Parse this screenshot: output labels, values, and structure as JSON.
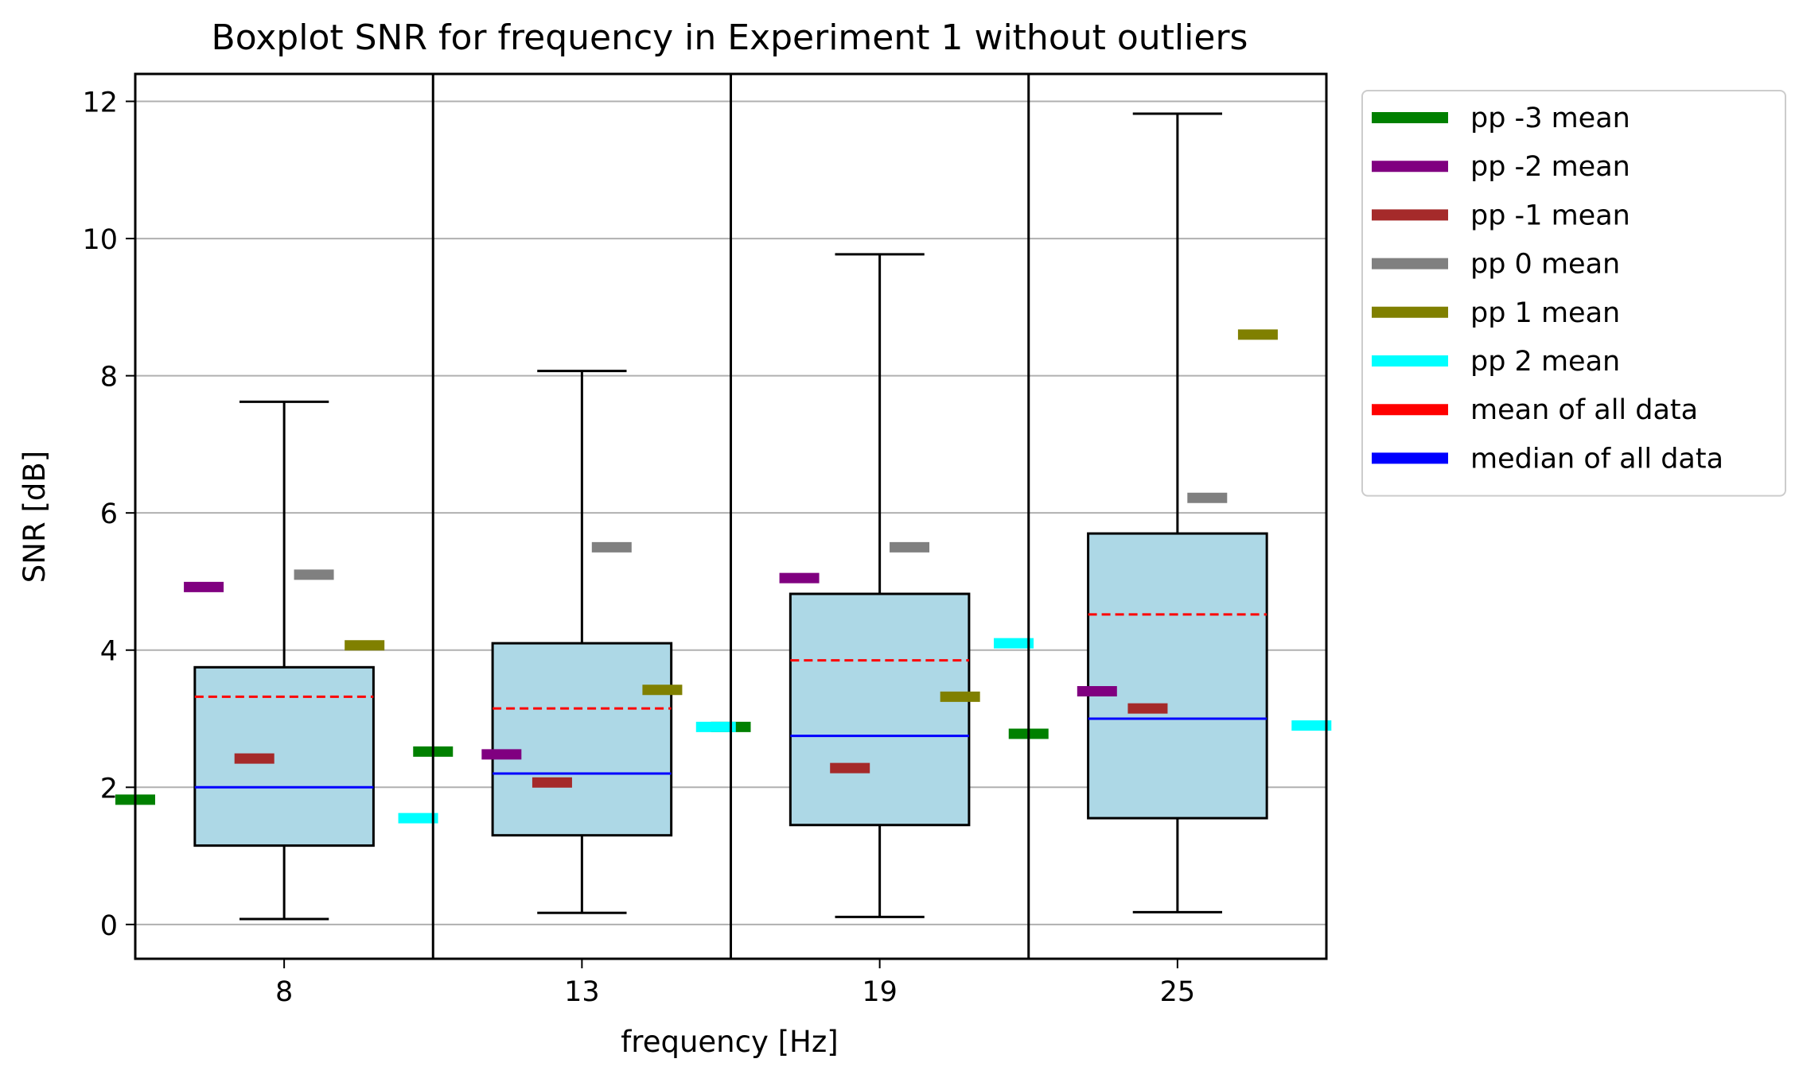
{
  "chart_data": {
    "type": "box",
    "title": "Boxplot SNR for frequency in Experiment 1 without outliers",
    "xlabel": "frequency [Hz]",
    "ylabel": "SNR [dB]",
    "categories": [
      "8",
      "13",
      "19",
      "25"
    ],
    "ylim": [
      -0.5,
      12.4
    ],
    "yticks": [
      0,
      2,
      4,
      6,
      8,
      10,
      12
    ],
    "grid": "horizontal",
    "legend_position": "outside-right",
    "boxes": [
      {
        "category": "8",
        "whisker_low": 0.08,
        "q1": 1.15,
        "median": 2.0,
        "q3": 3.75,
        "whisker_high": 7.62,
        "mean": 3.32
      },
      {
        "category": "13",
        "whisker_low": 0.17,
        "q1": 1.3,
        "median": 2.2,
        "q3": 4.1,
        "whisker_high": 8.07,
        "mean": 3.15
      },
      {
        "category": "19",
        "whisker_low": 0.11,
        "q1": 1.45,
        "median": 2.75,
        "q3": 4.82,
        "whisker_high": 9.77,
        "mean": 3.85
      },
      {
        "category": "25",
        "whisker_low": 0.18,
        "q1": 1.55,
        "median": 3.0,
        "q3": 5.7,
        "whisker_high": 11.82,
        "mean": 4.52
      }
    ],
    "series": [
      {
        "name": "pp -3 mean",
        "color": "#008000",
        "values": [
          1.82,
          2.52,
          2.88,
          2.78
        ]
      },
      {
        "name": "pp -2 mean",
        "color": "#800080",
        "values": [
          4.92,
          2.48,
          5.05,
          3.4
        ]
      },
      {
        "name": "pp -1 mean",
        "color": "#a52a2a",
        "values": [
          2.42,
          2.07,
          2.28,
          3.15
        ]
      },
      {
        "name": "pp 0 mean",
        "color": "#808080",
        "values": [
          5.1,
          5.5,
          5.5,
          6.22
        ]
      },
      {
        "name": "pp 1 mean",
        "color": "#808000",
        "values": [
          4.07,
          3.42,
          3.32,
          8.6
        ]
      },
      {
        "name": "pp 2 mean",
        "color": "#00ffff",
        "values": [
          1.55,
          2.88,
          4.1,
          2.9
        ]
      }
    ],
    "legend": [
      {
        "label": "pp -3 mean",
        "color": "#008000"
      },
      {
        "label": "pp -2 mean",
        "color": "#800080"
      },
      {
        "label": "pp -1 mean",
        "color": "#a52a2a"
      },
      {
        "label": "pp 0 mean",
        "color": "#808080"
      },
      {
        "label": "pp 1 mean",
        "color": "#808000"
      },
      {
        "label": "pp 2 mean",
        "color": "#00ffff"
      },
      {
        "label": "mean of all data",
        "color": "#ff0000"
      },
      {
        "label": "median of all data",
        "color": "#0000ff"
      }
    ],
    "colors": {
      "box_fill": "#add8e6",
      "mean_line": "#ff0000",
      "median_line": "#0000ff",
      "grid": "#b0b0b0"
    }
  }
}
